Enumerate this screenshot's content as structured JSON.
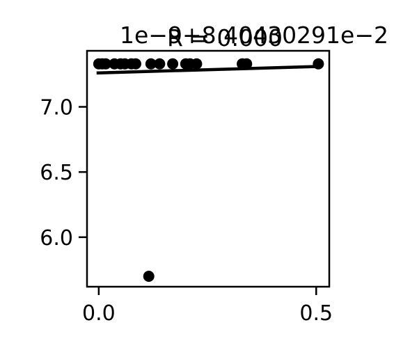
{
  "chart_data": {
    "type": "scatter",
    "title": "R = 0.000",
    "offset_text_x": "1e−9+8.40430291e−2",
    "xlabel": "",
    "ylabel": "",
    "xlim": [
      -0.027,
      0.53
    ],
    "ylim": [
      5.62,
      7.43
    ],
    "x_ticks": [
      0.0,
      0.5
    ],
    "x_tick_labels": [
      "0.0",
      "0.5"
    ],
    "y_ticks": [
      6.0,
      6.5,
      7.0
    ],
    "y_tick_labels": [
      "6.0",
      "6.5",
      "7.0"
    ],
    "grid": false,
    "marker_color": "#000000",
    "line_color": "#000000",
    "points": [
      {
        "x": 0.0,
        "y": 7.33
      },
      {
        "x": 0.008,
        "y": 7.33
      },
      {
        "x": 0.016,
        "y": 7.33
      },
      {
        "x": 0.036,
        "y": 7.33
      },
      {
        "x": 0.05,
        "y": 7.33
      },
      {
        "x": 0.06,
        "y": 7.33
      },
      {
        "x": 0.075,
        "y": 7.33
      },
      {
        "x": 0.085,
        "y": 7.33
      },
      {
        "x": 0.115,
        "y": 5.7
      },
      {
        "x": 0.12,
        "y": 7.33
      },
      {
        "x": 0.14,
        "y": 7.33
      },
      {
        "x": 0.17,
        "y": 7.33
      },
      {
        "x": 0.2,
        "y": 7.33
      },
      {
        "x": 0.21,
        "y": 7.33
      },
      {
        "x": 0.225,
        "y": 7.33
      },
      {
        "x": 0.33,
        "y": 7.33
      },
      {
        "x": 0.34,
        "y": 7.33
      },
      {
        "x": 0.505,
        "y": 7.33
      }
    ],
    "fit_line": {
      "x": [
        -0.005,
        0.505
      ],
      "y": [
        7.26,
        7.31
      ]
    }
  }
}
